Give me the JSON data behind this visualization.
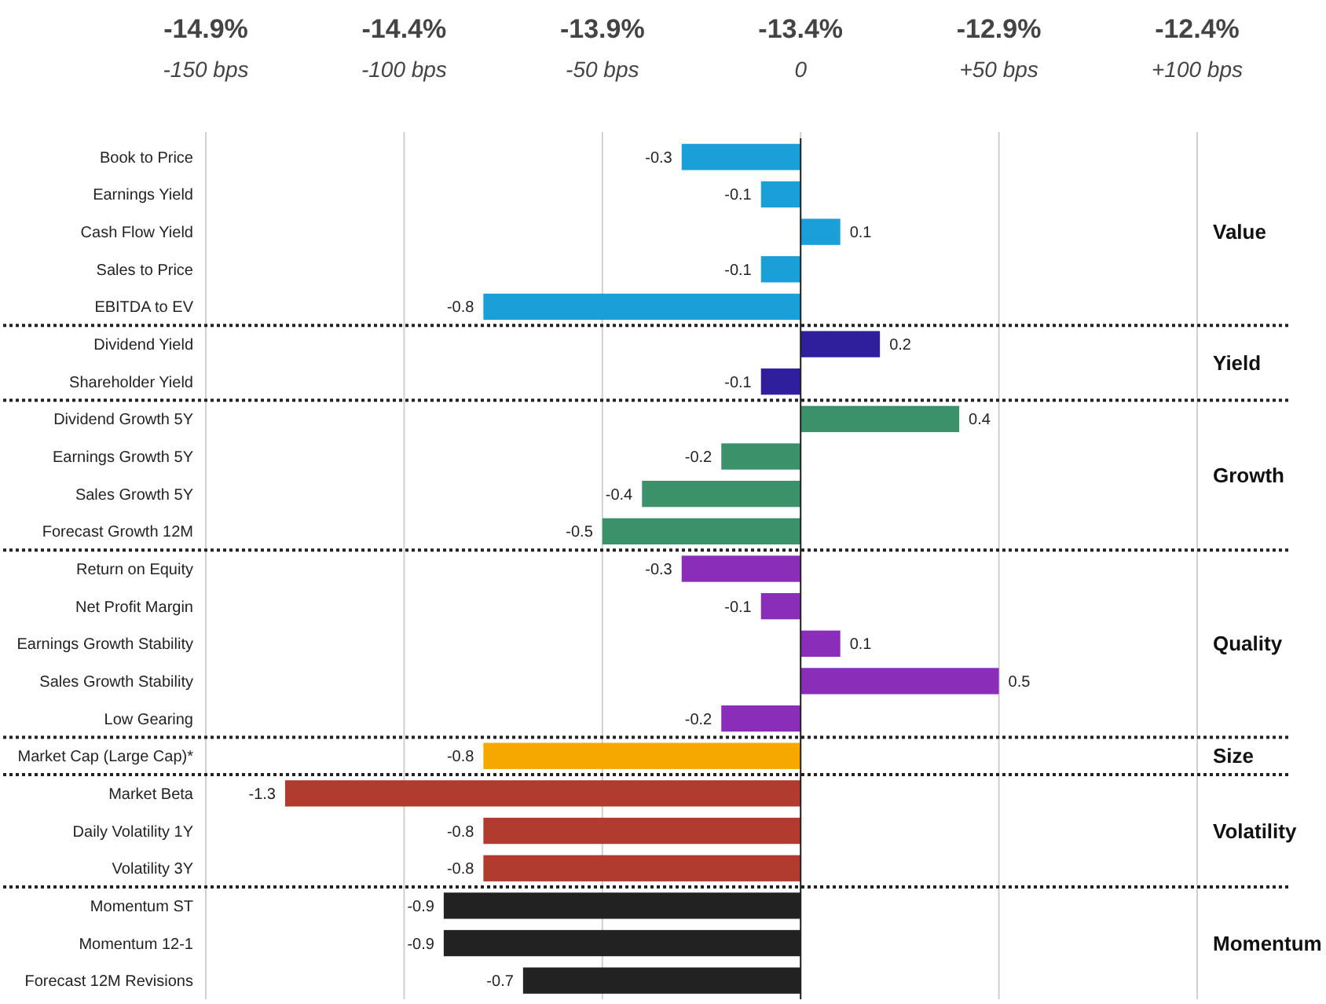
{
  "chart_data": {
    "type": "bar",
    "orientation": "horizontal",
    "categories": [
      "Book to Price",
      "Earnings Yield",
      "Cash Flow Yield",
      "Sales to Price",
      "EBITDA to EV",
      "Dividend Yield",
      "Shareholder Yield",
      "Dividend Growth 5Y",
      "Earnings Growth 5Y",
      "Sales Growth 5Y",
      "Forecast Growth 12M",
      "Return on Equity",
      "Net Profit Margin",
      "Earnings Growth Stability",
      "Sales Growth Stability",
      "Low Gearing",
      "Market Cap (Large Cap)*",
      "Market Beta",
      "Daily Volatility 1Y",
      "Volatility 3Y",
      "Momentum ST",
      "Momentum 12-1",
      "Forecast 12M Revisions"
    ],
    "series": [
      {
        "name": "Value",
        "color": "#1a9fd9",
        "values": [
          -0.3,
          -0.1,
          0.1,
          -0.1,
          -0.8,
          null,
          null,
          null,
          null,
          null,
          null,
          null,
          null,
          null,
          null,
          null,
          null,
          null,
          null,
          null,
          null,
          null,
          null
        ]
      },
      {
        "name": "Yield",
        "color": "#2f1f9c",
        "values": [
          null,
          null,
          null,
          null,
          null,
          0.2,
          -0.1,
          null,
          null,
          null,
          null,
          null,
          null,
          null,
          null,
          null,
          null,
          null,
          null,
          null,
          null,
          null,
          null
        ]
      },
      {
        "name": "Growth",
        "color": "#3b9169",
        "values": [
          null,
          null,
          null,
          null,
          null,
          null,
          null,
          0.4,
          -0.2,
          -0.4,
          -0.5,
          null,
          null,
          null,
          null,
          null,
          null,
          null,
          null,
          null,
          null,
          null,
          null
        ]
      },
      {
        "name": "Quality",
        "color": "#8a2db9",
        "values": [
          null,
          null,
          null,
          null,
          null,
          null,
          null,
          null,
          null,
          null,
          null,
          -0.3,
          -0.1,
          0.1,
          0.5,
          -0.2,
          null,
          null,
          null,
          null,
          null,
          null,
          null
        ]
      },
      {
        "name": "Size",
        "color": "#f6a800",
        "values": [
          null,
          null,
          null,
          null,
          null,
          null,
          null,
          null,
          null,
          null,
          null,
          null,
          null,
          null,
          null,
          null,
          -0.8,
          null,
          null,
          null,
          null,
          null,
          null
        ]
      },
      {
        "name": "Volatility",
        "color": "#b03b2e",
        "values": [
          null,
          null,
          null,
          null,
          null,
          null,
          null,
          null,
          null,
          null,
          null,
          null,
          null,
          null,
          null,
          null,
          null,
          -1.3,
          -0.8,
          -0.8,
          null,
          null,
          null
        ]
      },
      {
        "name": "Momentum",
        "color": "#222222",
        "values": [
          null,
          null,
          null,
          null,
          null,
          null,
          null,
          null,
          null,
          null,
          null,
          null,
          null,
          null,
          null,
          null,
          null,
          null,
          null,
          null,
          -0.9,
          -0.9,
          -0.7
        ]
      }
    ],
    "xlim": [
      -1.5,
      1.0
    ],
    "xticks": [
      {
        "value": -1.5,
        "label": null
      },
      {
        "value": -1.0,
        "label": null
      },
      {
        "value": -0.5,
        "label": null
      },
      {
        "value": 0,
        "label": null
      },
      {
        "value": 0.5,
        "label": null
      },
      {
        "value": 1.0,
        "label": null
      }
    ],
    "x2lim": [
      -14.9,
      -12.4
    ],
    "x2ticks": [
      {
        "value": -14.9,
        "label": "-14.9%"
      },
      {
        "value": -14.4,
        "label": "-14.4%"
      },
      {
        "value": -13.9,
        "label": "-13.9%"
      },
      {
        "value": -13.4,
        "label": "-13.4%"
      },
      {
        "value": -12.9,
        "label": "-12.9%"
      },
      {
        "value": -12.4,
        "label": "-12.4%"
      }
    ],
    "annotations": [
      "-150 bps",
      "-100 bps",
      "-50 bps",
      "0",
      "+50 bps",
      "+100 bps"
    ],
    "grid": "x",
    "data_labels": true,
    "legend": false
  }
}
